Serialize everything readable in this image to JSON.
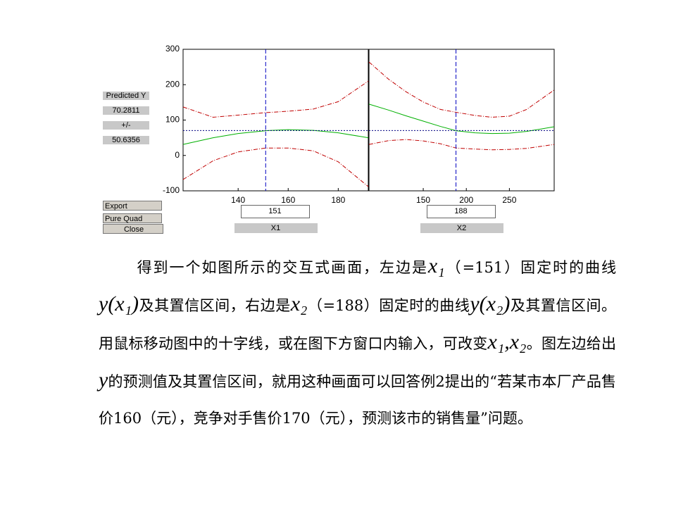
{
  "chart_data": [
    {
      "type": "line",
      "xlim": [
        118,
        192
      ],
      "xticks": [
        140,
        160,
        180
      ],
      "ylim": [
        -100,
        300
      ],
      "yticks": [
        -100,
        0,
        100,
        200,
        300
      ],
      "x": [
        118,
        130,
        140,
        151,
        160,
        170,
        180,
        192
      ],
      "series": [
        {
          "color": "#c00000",
          "line_style": "dash-dot",
          "values": [
            137,
            108,
            114,
            121,
            125,
            131,
            152,
            210
          ]
        },
        {
          "color": "#00b000",
          "line_style": "solid",
          "values": [
            31,
            50,
            62,
            70,
            73,
            71,
            64,
            50
          ]
        },
        {
          "color": "#c00000",
          "line_style": "dash-dot",
          "values": [
            -68,
            -15,
            10,
            21,
            21,
            13,
            -18,
            -88
          ]
        }
      ],
      "crosshair": 151,
      "xlabel": "X1"
    },
    {
      "type": "line",
      "xlim": [
        87,
        302
      ],
      "xticks": [
        150,
        200,
        250
      ],
      "ylim": [
        -100,
        300
      ],
      "x": [
        87,
        110,
        130,
        150,
        170,
        188,
        210,
        230,
        250,
        270,
        302
      ],
      "series": [
        {
          "color": "#c00000",
          "line_style": "dash-dot",
          "values": [
            264,
            215,
            180,
            151,
            130,
            122,
            113,
            108,
            111,
            130,
            185
          ]
        },
        {
          "color": "#00b000",
          "line_style": "solid",
          "values": [
            145,
            128,
            112,
            97,
            82,
            70,
            64,
            62,
            63,
            68,
            81
          ]
        },
        {
          "color": "#c00000",
          "line_style": "dash-dot",
          "values": [
            31,
            42,
            45,
            41,
            33,
            21,
            18,
            16,
            17,
            20,
            31
          ]
        }
      ],
      "crosshair": 188,
      "xlabel": "X2"
    }
  ],
  "panel": {
    "label": "Predicted Y",
    "predicted_value": 70.2811,
    "pm_label": "+/-",
    "half_width": 50.6356
  },
  "controls": {
    "export": "Export",
    "model": "Pure Quad",
    "close": "Close"
  },
  "paragraph": [
    "得到一个如图所示的交互式画面，左边是",
    "x₁",
    "（=151）固定时的曲线",
    "y(x₁)",
    "及其置信区间，右边是",
    "x₂",
    "（=188）固定时的曲线",
    "y(x₂)",
    "及其置信区间。用鼠标移动图中的十字线，或在图下方窗口内输入，可改变",
    "x₁,x₂",
    "。图左边给出",
    "y",
    "的预测值及其置信区间，就用这种画面可以回答例2提出的“若某市本厂产品售价160（元），竞争对手售价170（元），预测该市的销售量”问题。"
  ]
}
